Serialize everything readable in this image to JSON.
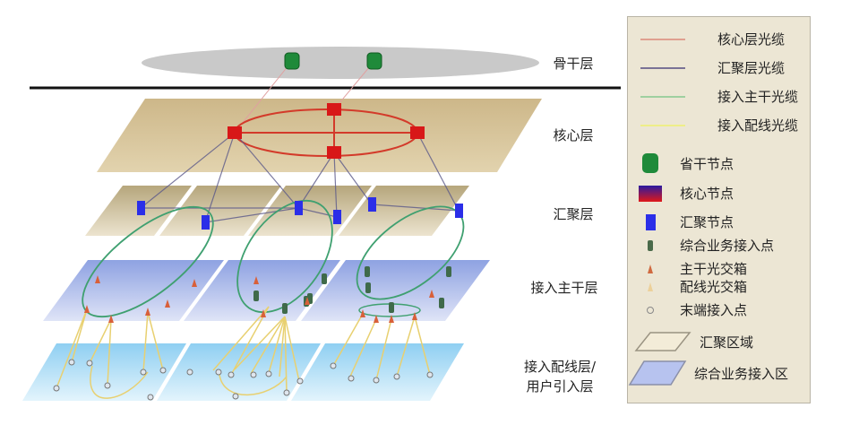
{
  "layers": {
    "backbone": "骨干层",
    "core": "核心层",
    "aggregation": "汇聚层",
    "access_trunk": "接入主干层",
    "access_distribution_line1": "接入配线层/",
    "access_distribution_line2": "用户引入层"
  },
  "legend": {
    "lines": [
      {
        "label": "核心层光缆",
        "color": "#e0a090"
      },
      {
        "label": "汇聚层光缆",
        "color": "#7a7296"
      },
      {
        "label": "接入主干光缆",
        "color": "#9fd0a0"
      },
      {
        "label": "接入配线光缆",
        "color": "#eeee88"
      }
    ],
    "nodes": [
      {
        "label": "省干节点",
        "icon": "province-node-icon"
      },
      {
        "label": "核心节点",
        "icon": "core-node-icon"
      },
      {
        "label": "汇聚节点",
        "icon": "aggregation-node-icon"
      },
      {
        "label": "综合业务接入点",
        "icon": "service-access-point-icon"
      },
      {
        "label": "主干光交箱",
        "icon": "trunk-cross-box-icon"
      },
      {
        "label": "配线光交箱",
        "icon": "distribution-cross-box-icon"
      },
      {
        "label": "末端接入点",
        "icon": "terminal-access-point-icon"
      }
    ],
    "areas": [
      {
        "label": "汇聚区域",
        "icon": "aggregation-area-icon"
      },
      {
        "label": "综合业务接入区",
        "icon": "service-access-area-icon"
      }
    ]
  },
  "colors": {
    "core_cable": "#d33a2a",
    "aggregation_cable": "#5c5a8a",
    "trunk_cable": "#3fa070",
    "distribution_cable": "#e8d070",
    "core_plane": "#d4c095",
    "aggregation_plane": "#c8b88a",
    "trunk_plane": "#9fb0e6",
    "distribution_plane": "#9fd6f2"
  }
}
